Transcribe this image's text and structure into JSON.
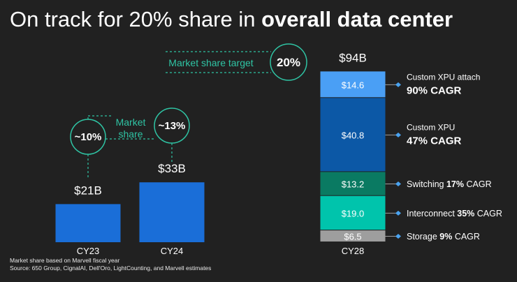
{
  "title": {
    "prefix": "On track for 20% share in ",
    "bold": "overall data center"
  },
  "chart_data": {
    "type": "bar",
    "categories": [
      "CY23",
      "CY24",
      "CY28"
    ],
    "values": [
      21,
      33,
      94
    ],
    "value_labels": [
      "$21B",
      "$33B",
      "$94B"
    ],
    "ylim": [
      0,
      100
    ],
    "stack": {
      "category": "CY28",
      "segments": [
        {
          "name": "Storage",
          "value": 6.5,
          "label": "$6.5",
          "cagr": "9%",
          "legend_prefix": "Storage ",
          "legend_suffix": " CAGR",
          "color": "#9e9e9e"
        },
        {
          "name": "Interconnect",
          "value": 19.0,
          "label": "$19.0",
          "cagr": "35%",
          "legend_prefix": "Interconnect ",
          "legend_suffix": " CAGR",
          "color": "#00c4ac"
        },
        {
          "name": "Switching",
          "value": 13.2,
          "label": "$13.2",
          "cagr": "17%",
          "legend_prefix": "Switching ",
          "legend_suffix": " CAGR",
          "color": "#0a7a62"
        },
        {
          "name": "Custom XPU",
          "value": 40.8,
          "label": "$40.8",
          "legend_title": "Custom XPU",
          "legend_big": "47% CAGR",
          "color": "#0c58a6"
        },
        {
          "name": "Custom XPU attach",
          "value": 14.6,
          "label": "$14.6",
          "legend_title": "Custom XPU attach",
          "legend_big": "90% CAGR",
          "color": "#4a9ff5"
        }
      ]
    },
    "bar_color": "#1a6ed8",
    "annotations": {
      "share_cy23": "~10%",
      "share_cy24": "~13%",
      "market_share_line1": "Market",
      "market_share_line2": "share",
      "target_label": "Market share target",
      "target_value": "20%"
    }
  },
  "colors": {
    "accent": "#2fc4a4",
    "background": "#212121"
  },
  "footnote": {
    "line1": "Market share based on Marvell fiscal year",
    "line2": "Source: 650 Group, CignalAI, Dell'Oro, LightCounting, and Marvell estimates"
  }
}
